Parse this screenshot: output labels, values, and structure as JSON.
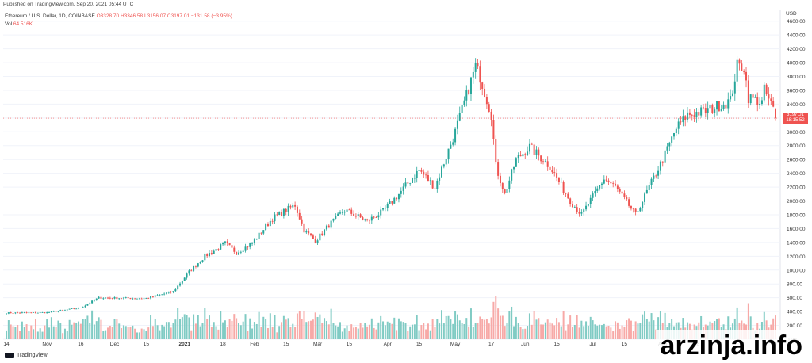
{
  "header": {
    "published": "Published on TradingView.com, Sep 20, 2021 05:44 UTC"
  },
  "legend": {
    "symbol": "Ethereum / U.S. Dollar, 1D, COINBASE",
    "ohlc": "O3328.70 H3346.58 L3156.07 C3197.01 −131.58 (−3.95%)",
    "vol_label": "Vol",
    "vol_value": "64.516K"
  },
  "price_axis": {
    "currency": "USD",
    "ticks": [
      "4600.00",
      "4400.00",
      "4200.00",
      "4000.00",
      "3800.00",
      "3600.00",
      "3400.00",
      "3200.00",
      "3000.00",
      "2800.00",
      "2600.00",
      "2400.00",
      "2200.00",
      "2000.00",
      "1800.00",
      "1600.00",
      "1400.00",
      "1200.00",
      "1000.00",
      "800.00",
      "600.00",
      "400.00",
      "200.00",
      "0.00"
    ],
    "last_price": "3197.01",
    "countdown": "18:15:52"
  },
  "time_axis": {
    "labels": [
      "14",
      "Nov",
      "16",
      "Dec",
      "15",
      "2021",
      "18",
      "Feb",
      "15",
      "Mar",
      "15",
      "Apr",
      "15",
      "May",
      "17",
      "Jun",
      "15",
      "Jul",
      "15",
      "Aug",
      "16",
      "20"
    ]
  },
  "footer": {
    "brand": "TradingView"
  },
  "watermark": "arzinja.info",
  "colors": {
    "up": "#26a69a",
    "down": "#ef5350",
    "vol_up": "#80cbc4",
    "vol_down": "#f7a9a7",
    "grid": "#f0f3fa"
  },
  "chart_data": {
    "type": "candlestick",
    "title": "Ethereum / U.S. Dollar, 1D, COINBASE",
    "ylim": [
      0,
      4700
    ],
    "x_range": [
      "2020-10-14",
      "2021-09-20"
    ],
    "close_anchors": [
      {
        "date": "2020-10-14",
        "close": 380
      },
      {
        "date": "2020-11-01",
        "close": 385
      },
      {
        "date": "2020-11-16",
        "close": 455
      },
      {
        "date": "2020-11-24",
        "close": 600
      },
      {
        "date": "2020-12-15",
        "close": 590
      },
      {
        "date": "2020-12-27",
        "close": 690
      },
      {
        "date": "2021-01-03",
        "close": 975
      },
      {
        "date": "2021-01-10",
        "close": 1200
      },
      {
        "date": "2021-01-15",
        "close": 1300
      },
      {
        "date": "2021-01-19",
        "close": 1390
      },
      {
        "date": "2021-01-24",
        "close": 1250
      },
      {
        "date": "2021-01-31",
        "close": 1390
      },
      {
        "date": "2021-02-09",
        "close": 1750
      },
      {
        "date": "2021-02-19",
        "close": 1940
      },
      {
        "date": "2021-02-23",
        "close": 1580
      },
      {
        "date": "2021-02-28",
        "close": 1420
      },
      {
        "date": "2021-03-06",
        "close": 1650
      },
      {
        "date": "2021-03-13",
        "close": 1870
      },
      {
        "date": "2021-03-23",
        "close": 1710
      },
      {
        "date": "2021-03-30",
        "close": 1850
      },
      {
        "date": "2021-04-06",
        "close": 2100
      },
      {
        "date": "2021-04-15",
        "close": 2450
      },
      {
        "date": "2021-04-22",
        "close": 2200
      },
      {
        "date": "2021-05-01",
        "close": 3000
      },
      {
        "date": "2021-05-10",
        "close": 3950
      },
      {
        "date": "2021-05-12",
        "close": 3800
      },
      {
        "date": "2021-05-17",
        "close": 3250
      },
      {
        "date": "2021-05-19",
        "close": 2500
      },
      {
        "date": "2021-05-23",
        "close": 2100
      },
      {
        "date": "2021-05-28",
        "close": 2600
      },
      {
        "date": "2021-06-03",
        "close": 2780
      },
      {
        "date": "2021-06-12",
        "close": 2500
      },
      {
        "date": "2021-06-21",
        "close": 2000
      },
      {
        "date": "2021-06-26",
        "close": 1800
      },
      {
        "date": "2021-07-06",
        "close": 2320
      },
      {
        "date": "2021-07-11",
        "close": 2200
      },
      {
        "date": "2021-07-20",
        "close": 1800
      },
      {
        "date": "2021-08-01",
        "close": 2600
      },
      {
        "date": "2021-08-07",
        "close": 3050
      },
      {
        "date": "2021-08-12",
        "close": 3250
      },
      {
        "date": "2021-08-20",
        "close": 3300
      },
      {
        "date": "2021-08-31",
        "close": 3450
      },
      {
        "date": "2021-09-03",
        "close": 3950
      },
      {
        "date": "2021-09-06",
        "close": 3940
      },
      {
        "date": "2021-09-08",
        "close": 3500
      },
      {
        "date": "2021-09-14",
        "close": 3420
      },
      {
        "date": "2021-09-15",
        "close": 3600
      },
      {
        "date": "2021-09-19",
        "close": 3330
      },
      {
        "date": "2021-09-20",
        "close": 3197
      }
    ],
    "last_candle": {
      "open": 3328.7,
      "high": 3346.58,
      "low": 3156.07,
      "close": 3197.01
    },
    "volume_peak": 1200
  }
}
